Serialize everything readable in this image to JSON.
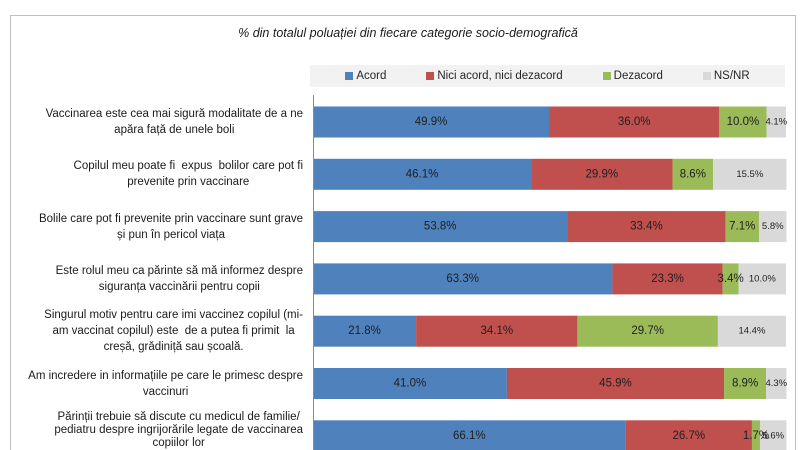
{
  "chart_data": {
    "type": "bar",
    "horizontal": true,
    "stacked": true,
    "title": "% din totalul poluației din fiecare categorie socio-demografică",
    "xlabel": "",
    "ylabel": "",
    "xlim": [
      0,
      100
    ],
    "grid": false,
    "legend_position": "top",
    "categories": [
      "Vaccinarea este cea mai sigură modalitate de a ne\napăra față de unele boli",
      "Copilul meu poate fi  expus  bolilor care pot fi\nprevenite prin vaccinare",
      "Bolile care pot fi prevenite prin vaccinare sunt grave\nși pun în pericol viața",
      "Este rolul meu ca părinte să mă informez despre\nsiguranța vaccinării pentru copii",
      "Singurul motiv pentru care imi vaccinez copilul (mi-\nam vaccinat copilul) este  de a putea fi primit  la\ncreșă, grădiniță sau școală.",
      "Am incredere in informațiile pe care le primesc despre\nvaccinuri",
      "Părinții trebuie să discute cu medicul de familie/\npediatru despre ingrijorările legate de vaccinarea\ncopiilor lor"
    ],
    "series": [
      {
        "name": "Acord",
        "color": "#4f81bd",
        "values": [
          49.9,
          46.1,
          53.8,
          63.3,
          21.8,
          41.0,
          66.1
        ],
        "labels": [
          "49.9%",
          "46.1%",
          "53.8%",
          "63.3%",
          "21.8%",
          "41.0%",
          "66.1%"
        ]
      },
      {
        "name": "Nici acord, nici dezacord",
        "color": "#c0504d",
        "values": [
          36.0,
          29.9,
          33.4,
          23.3,
          34.1,
          45.9,
          26.7
        ],
        "labels": [
          "36.0%",
          "29.9%",
          "33.4%",
          "23.3%",
          "34.1%",
          "45.9%",
          "26.7%"
        ]
      },
      {
        "name": "Dezacord",
        "color": "#9bbb59",
        "values": [
          10.0,
          8.6,
          7.1,
          3.4,
          29.7,
          8.9,
          1.7
        ],
        "labels": [
          "10.0%",
          "8.6%",
          "7.1%",
          "3.4%",
          "29.7%",
          "8.9%",
          "1.7%"
        ]
      },
      {
        "name": "NS/NR",
        "color": "#d9d9d9",
        "values": [
          4.1,
          15.5,
          5.8,
          10.0,
          14.4,
          4.3,
          5.6
        ],
        "labels": [
          "4.1%",
          "15.5%",
          "5.8%",
          "10.0%",
          "14.4%",
          "4.3%",
          "5.6%"
        ]
      }
    ]
  }
}
